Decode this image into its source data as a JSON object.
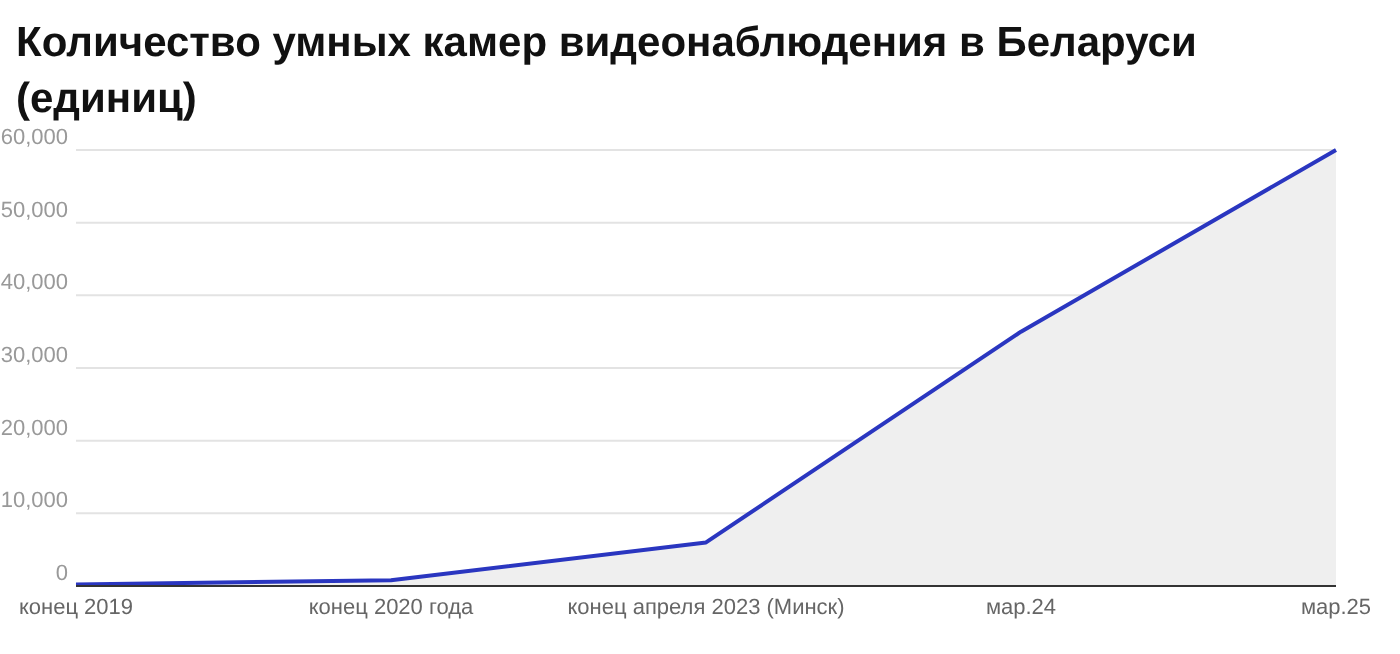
{
  "chart_data": {
    "type": "area",
    "title": "Количество умных камер видеонаблюдения в Беларуси (единиц)",
    "categories": [
      "конец 2019",
      "конец 2020 года",
      "конец апреля 2023 (Минск)",
      "мар.24",
      "мар.25"
    ],
    "series": [
      {
        "color": "#2a36c0",
        "values": [
          200,
          800,
          6000,
          35000,
          60000
        ]
      }
    ],
    "ylim": [
      0,
      60000
    ],
    "yticks": [
      0,
      {
        "value": 10000,
        "label": "10,000"
      },
      {
        "value": 20000,
        "label": "20,000"
      },
      {
        "value": 30000,
        "label": "30,000"
      },
      {
        "value": 40000,
        "label": "40,000"
      },
      {
        "value": 50000,
        "label": "50,000"
      },
      {
        "value": 60000,
        "label": "60,000"
      }
    ],
    "grid": "y"
  }
}
